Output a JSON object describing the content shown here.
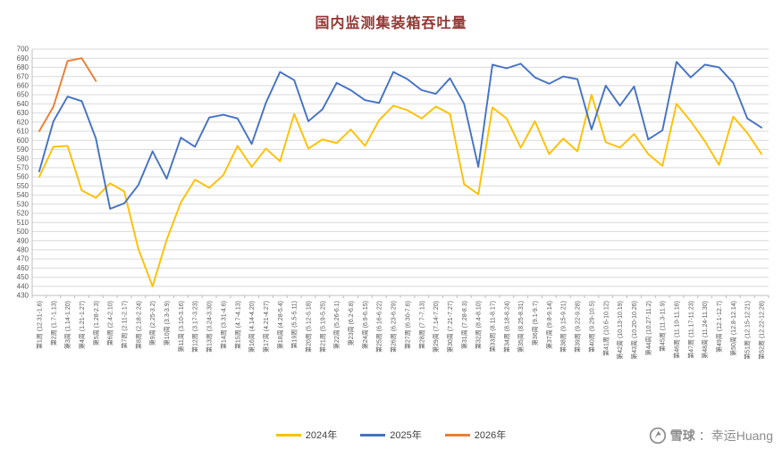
{
  "chart_data": {
    "type": "line",
    "title": "国内监测集装箱吞吐量",
    "title_color": "#943634",
    "xlabel": "",
    "ylabel": "",
    "ylim": [
      430,
      700
    ],
    "ytick_step": 10,
    "grid": true,
    "legend_position": "bottom",
    "colors": {
      "gridline": "#D9D9D9",
      "axis": "#BFBFBF",
      "tick_label": "#595959"
    },
    "categories": [
      "第1周 (12.31-1.6)",
      "第2周 (1.7-1.13)",
      "第3周 (1.14-1.20)",
      "第4周 (1.21-1.27)",
      "第5周 (1.28-2.3)",
      "第6周 (2.4-2.10)",
      "第7周 (2.11-2.17)",
      "第8周 (2.18-2.24)",
      "第9周 (2.25-3.2)",
      "第10周 (3.3-3.9)",
      "第11周 (3.10-3.16)",
      "第12周 (3.17-3.23)",
      "第13周 (3.24-3.30)",
      "第14周 (3.31-4.6)",
      "第15周 (4.7-4.13)",
      "第16周 (4.14-4.20)",
      "第17周 (4.21-4.27)",
      "第18周 (4.28-5.4)",
      "第19周 (5.5-5.11)",
      "第20周 (5.12-5.18)",
      "第21周 (5.19-5.25)",
      "第22周 (5.26-6.1)",
      "第23周 (6.2-6.8)",
      "第24周 (6.9-6.15)",
      "第25周 (6.16-6.22)",
      "第26周 (6.23-6.29)",
      "第27周 (6.30-7.6)",
      "第28周 (7.7-7.13)",
      "第29周 (7.14-7.20)",
      "第30周 (7.21-7.27)",
      "第31周 (7.28-8.3)",
      "第32周 (8.4-8.10)",
      "第33周 (8.11-8.17)",
      "第34周 (8.18-8.24)",
      "第35周 (8.25-8.31)",
      "第36周 (9.1-9.7)",
      "第37周 (9.8-9.14)",
      "第38周 (9.15-9.21)",
      "第39周 (9.22-9.28)",
      "第40周 (9.29-10.5)",
      "第41周 (10.6-10.12)",
      "第42周 (10.13-10.19)",
      "第43周 (10.20-10.26)",
      "第44周 (10.27-11.2)",
      "第45周 (11.3-11.9)",
      "第46周 (11.10-11.16)",
      "第47周 (11.17-11.23)",
      "第48周 (11.24-11.30)",
      "第49周 (12.1-12.7)",
      "第50周 (12.8-12.14)",
      "第51周 (12.15-12.21)",
      "第52周 (12.22-12.28)"
    ],
    "series": [
      {
        "name": "2024年",
        "color": "#FFC000",
        "values": [
          560,
          593,
          594,
          545,
          537,
          553,
          544,
          481,
          440,
          491,
          532,
          557,
          548,
          562,
          594,
          571,
          591,
          577,
          629,
          591,
          601,
          597,
          612,
          594,
          622,
          638,
          633,
          624,
          637,
          629,
          552,
          541,
          636,
          624,
          592,
          621,
          585,
          602,
          588,
          650,
          598,
          592,
          607,
          585,
          572,
          640,
          621,
          599,
          573,
          626,
          608,
          585
        ]
      },
      {
        "name": "2025年",
        "color": "#4472C4",
        "values": [
          566,
          621,
          648,
          643,
          602,
          525,
          531,
          551,
          588,
          558,
          603,
          593,
          625,
          628,
          624,
          596,
          641,
          675,
          666,
          621,
          634,
          663,
          655,
          644,
          641,
          675,
          667,
          655,
          651,
          668,
          640,
          571,
          683,
          679,
          684,
          669,
          662,
          670,
          667,
          612,
          660,
          638,
          659,
          601,
          611,
          686,
          669,
          683,
          680,
          663,
          624,
          614
        ]
      },
      {
        "name": "2026年",
        "color": "#ED7D31",
        "values": [
          610,
          637,
          687,
          690,
          665
        ]
      }
    ]
  },
  "watermark": {
    "brand": "雪球",
    "user": "：幸运Huang"
  }
}
